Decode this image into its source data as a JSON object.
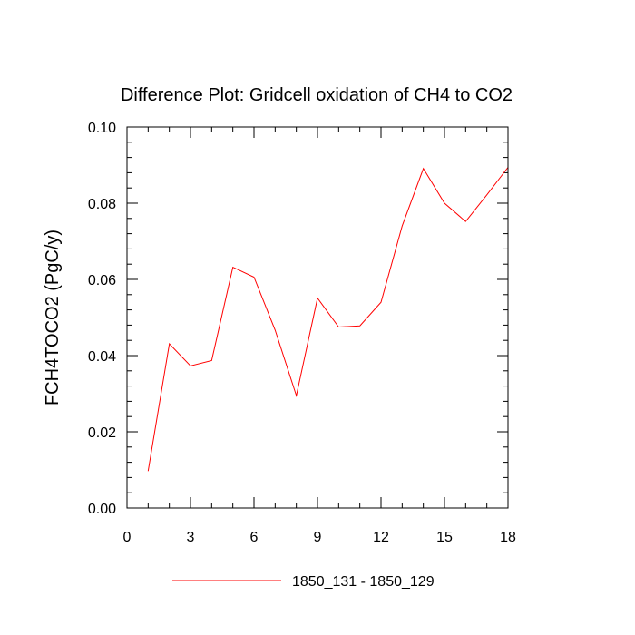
{
  "chart_data": {
    "type": "line",
    "title": "Difference Plot: Gridcell oxidation of CH4 to CO2",
    "xlabel": "",
    "ylabel": "FCH4TOCO2  (PgC/y)",
    "xlim": [
      0,
      18
    ],
    "ylim": [
      0.0,
      0.1
    ],
    "x_ticks": [
      0,
      3,
      6,
      9,
      12,
      15,
      18
    ],
    "x_tick_labels": [
      "0",
      "3",
      "6",
      "9",
      "12",
      "15",
      "18"
    ],
    "y_ticks": [
      0.0,
      0.02,
      0.04,
      0.06,
      0.08,
      0.1
    ],
    "y_tick_labels": [
      "0.00",
      "0.02",
      "0.04",
      "0.06",
      "0.08",
      "0.10"
    ],
    "x_minor_step": 1,
    "y_minor_step": 0.004,
    "grid": false,
    "legend_position": "bottom-center",
    "series": [
      {
        "name": "1850_131 - 1850_129",
        "color": "#ff0000",
        "x": [
          1,
          2,
          3,
          4,
          5,
          6,
          7,
          8,
          9,
          10,
          11,
          12,
          13,
          14,
          15,
          16,
          17,
          18
        ],
        "values": [
          0.0097,
          0.0431,
          0.0373,
          0.0387,
          0.0632,
          0.0606,
          0.0467,
          0.0295,
          0.0551,
          0.0475,
          0.0478,
          0.054,
          0.074,
          0.0891,
          0.08,
          0.0752,
          0.0822,
          0.0894
        ]
      }
    ]
  }
}
